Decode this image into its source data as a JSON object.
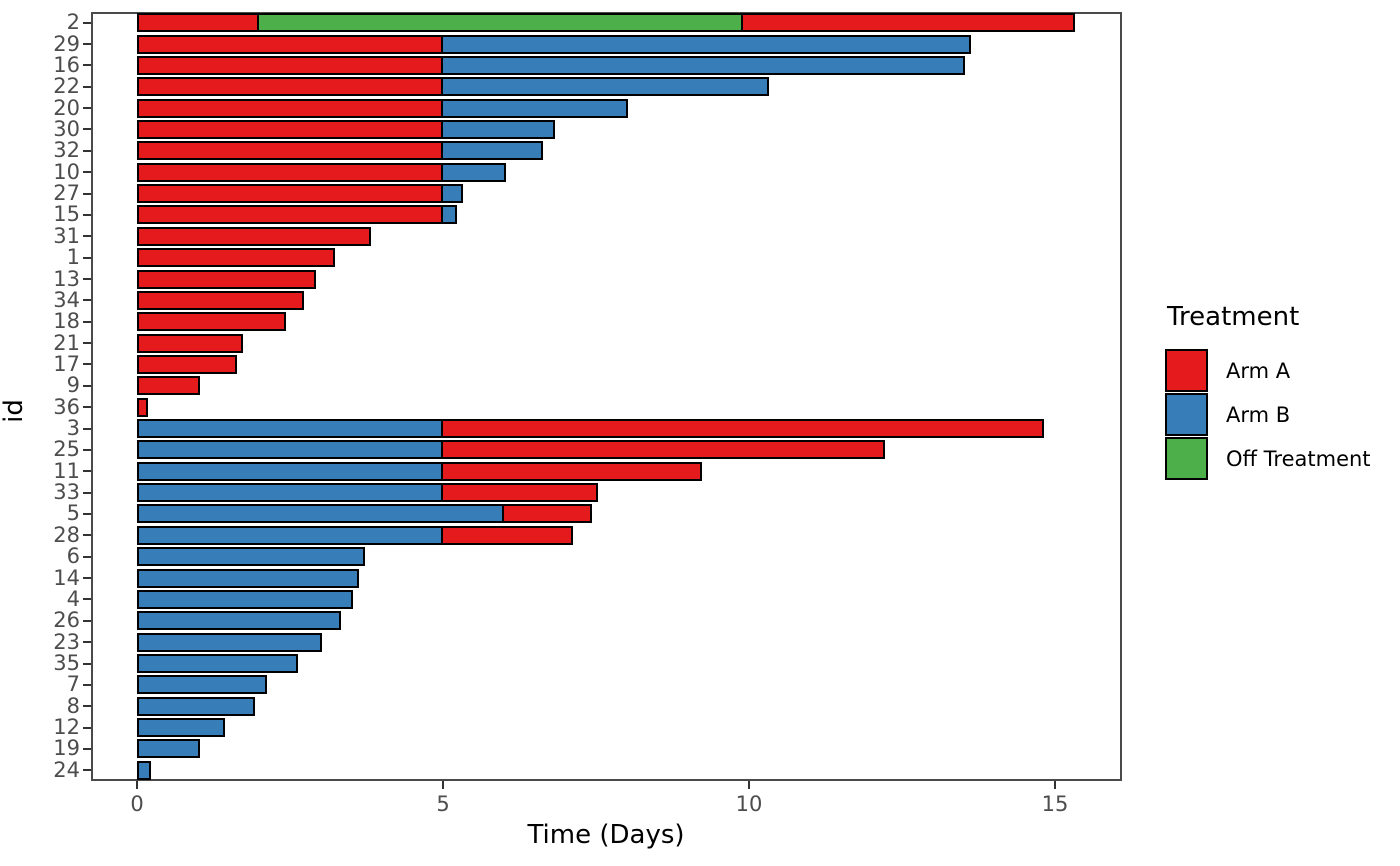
{
  "figure": {
    "background": "#ffffff",
    "panel_border_color": "#4a4a4a",
    "bar_outline_color": "#000000",
    "tick_color": "#333333",
    "tick_label_color": "#4d4d4d",
    "axis_title_color": "#000000"
  },
  "chart_data": {
    "type": "bar",
    "orientation": "horizontal",
    "stacked": true,
    "title": "",
    "xlabel": "Time (Days)",
    "ylabel": "id",
    "xticks": [
      0,
      5,
      10,
      15
    ],
    "xlim": [
      -0.75,
      16.1
    ],
    "grid": false,
    "legend": {
      "title": "Treatment",
      "position": "right",
      "entries": [
        {
          "label": "Arm A",
          "color": "#E41A1C"
        },
        {
          "label": "Arm B",
          "color": "#377EB8"
        },
        {
          "label": "Off Treatment",
          "color": "#4DAF4A"
        }
      ]
    },
    "colors": {
      "Arm A": "#E41A1C",
      "Arm B": "#377EB8",
      "Off Treatment": "#4DAF4A"
    },
    "bars": [
      {
        "id": "2",
        "segments": [
          {
            "treatment": "Arm A",
            "start": 0,
            "end": 2.0
          },
          {
            "treatment": "Off Treatment",
            "start": 2.0,
            "end": 9.9
          },
          {
            "treatment": "Arm A",
            "start": 9.9,
            "end": 15.3
          }
        ]
      },
      {
        "id": "29",
        "segments": [
          {
            "treatment": "Arm A",
            "start": 0,
            "end": 5.0
          },
          {
            "treatment": "Arm B",
            "start": 5.0,
            "end": 13.6
          }
        ]
      },
      {
        "id": "16",
        "segments": [
          {
            "treatment": "Arm A",
            "start": 0,
            "end": 5.0
          },
          {
            "treatment": "Arm B",
            "start": 5.0,
            "end": 13.5
          }
        ]
      },
      {
        "id": "22",
        "segments": [
          {
            "treatment": "Arm A",
            "start": 0,
            "end": 5.0
          },
          {
            "treatment": "Arm B",
            "start": 5.0,
            "end": 10.3
          }
        ]
      },
      {
        "id": "20",
        "segments": [
          {
            "treatment": "Arm A",
            "start": 0,
            "end": 5.0
          },
          {
            "treatment": "Arm B",
            "start": 5.0,
            "end": 8.0
          }
        ]
      },
      {
        "id": "30",
        "segments": [
          {
            "treatment": "Arm A",
            "start": 0,
            "end": 5.0
          },
          {
            "treatment": "Arm B",
            "start": 5.0,
            "end": 6.8
          }
        ]
      },
      {
        "id": "32",
        "segments": [
          {
            "treatment": "Arm A",
            "start": 0,
            "end": 5.0
          },
          {
            "treatment": "Arm B",
            "start": 5.0,
            "end": 6.6
          }
        ]
      },
      {
        "id": "10",
        "segments": [
          {
            "treatment": "Arm A",
            "start": 0,
            "end": 5.0
          },
          {
            "treatment": "Arm B",
            "start": 5.0,
            "end": 6.0
          }
        ]
      },
      {
        "id": "27",
        "segments": [
          {
            "treatment": "Arm A",
            "start": 0,
            "end": 5.0
          },
          {
            "treatment": "Arm B",
            "start": 5.0,
            "end": 5.3
          }
        ]
      },
      {
        "id": "15",
        "segments": [
          {
            "treatment": "Arm A",
            "start": 0,
            "end": 5.0
          },
          {
            "treatment": "Arm B",
            "start": 5.0,
            "end": 5.2
          }
        ]
      },
      {
        "id": "31",
        "segments": [
          {
            "treatment": "Arm A",
            "start": 0,
            "end": 3.8
          }
        ]
      },
      {
        "id": "1",
        "segments": [
          {
            "treatment": "Arm A",
            "start": 0,
            "end": 3.2
          }
        ]
      },
      {
        "id": "13",
        "segments": [
          {
            "treatment": "Arm A",
            "start": 0,
            "end": 2.9
          }
        ]
      },
      {
        "id": "34",
        "segments": [
          {
            "treatment": "Arm A",
            "start": 0,
            "end": 2.7
          }
        ]
      },
      {
        "id": "18",
        "segments": [
          {
            "treatment": "Arm A",
            "start": 0,
            "end": 2.4
          }
        ]
      },
      {
        "id": "21",
        "segments": [
          {
            "treatment": "Arm A",
            "start": 0,
            "end": 1.7
          }
        ]
      },
      {
        "id": "17",
        "segments": [
          {
            "treatment": "Arm A",
            "start": 0,
            "end": 1.6
          }
        ]
      },
      {
        "id": "9",
        "segments": [
          {
            "treatment": "Arm A",
            "start": 0,
            "end": 1.0
          }
        ]
      },
      {
        "id": "36",
        "segments": [
          {
            "treatment": "Arm A",
            "start": 0,
            "end": 0.15
          }
        ]
      },
      {
        "id": "3",
        "segments": [
          {
            "treatment": "Arm B",
            "start": 0,
            "end": 5.0
          },
          {
            "treatment": "Arm A",
            "start": 5.0,
            "end": 14.8
          }
        ]
      },
      {
        "id": "25",
        "segments": [
          {
            "treatment": "Arm B",
            "start": 0,
            "end": 5.0
          },
          {
            "treatment": "Arm A",
            "start": 5.0,
            "end": 12.2
          }
        ]
      },
      {
        "id": "11",
        "segments": [
          {
            "treatment": "Arm B",
            "start": 0,
            "end": 5.0
          },
          {
            "treatment": "Arm A",
            "start": 5.0,
            "end": 9.2
          }
        ]
      },
      {
        "id": "33",
        "segments": [
          {
            "treatment": "Arm B",
            "start": 0,
            "end": 5.0
          },
          {
            "treatment": "Arm A",
            "start": 5.0,
            "end": 7.5
          }
        ]
      },
      {
        "id": "5",
        "segments": [
          {
            "treatment": "Arm B",
            "start": 0,
            "end": 6.0
          },
          {
            "treatment": "Arm A",
            "start": 6.0,
            "end": 7.4
          }
        ]
      },
      {
        "id": "28",
        "segments": [
          {
            "treatment": "Arm B",
            "start": 0,
            "end": 5.0
          },
          {
            "treatment": "Arm A",
            "start": 5.0,
            "end": 7.1
          }
        ]
      },
      {
        "id": "6",
        "segments": [
          {
            "treatment": "Arm B",
            "start": 0,
            "end": 3.7
          }
        ]
      },
      {
        "id": "14",
        "segments": [
          {
            "treatment": "Arm B",
            "start": 0,
            "end": 3.6
          }
        ]
      },
      {
        "id": "4",
        "segments": [
          {
            "treatment": "Arm B",
            "start": 0,
            "end": 3.5
          }
        ]
      },
      {
        "id": "26",
        "segments": [
          {
            "treatment": "Arm B",
            "start": 0,
            "end": 3.3
          }
        ]
      },
      {
        "id": "23",
        "segments": [
          {
            "treatment": "Arm B",
            "start": 0,
            "end": 3.0
          }
        ]
      },
      {
        "id": "35",
        "segments": [
          {
            "treatment": "Arm B",
            "start": 0,
            "end": 2.6
          }
        ]
      },
      {
        "id": "7",
        "segments": [
          {
            "treatment": "Arm B",
            "start": 0,
            "end": 2.1
          }
        ]
      },
      {
        "id": "8",
        "segments": [
          {
            "treatment": "Arm B",
            "start": 0,
            "end": 1.9
          }
        ]
      },
      {
        "id": "12",
        "segments": [
          {
            "treatment": "Arm B",
            "start": 0,
            "end": 1.4
          }
        ]
      },
      {
        "id": "19",
        "segments": [
          {
            "treatment": "Arm B",
            "start": 0,
            "end": 1.0
          }
        ]
      },
      {
        "id": "24",
        "segments": [
          {
            "treatment": "Arm B",
            "start": 0,
            "end": 0.2
          }
        ]
      }
    ]
  }
}
